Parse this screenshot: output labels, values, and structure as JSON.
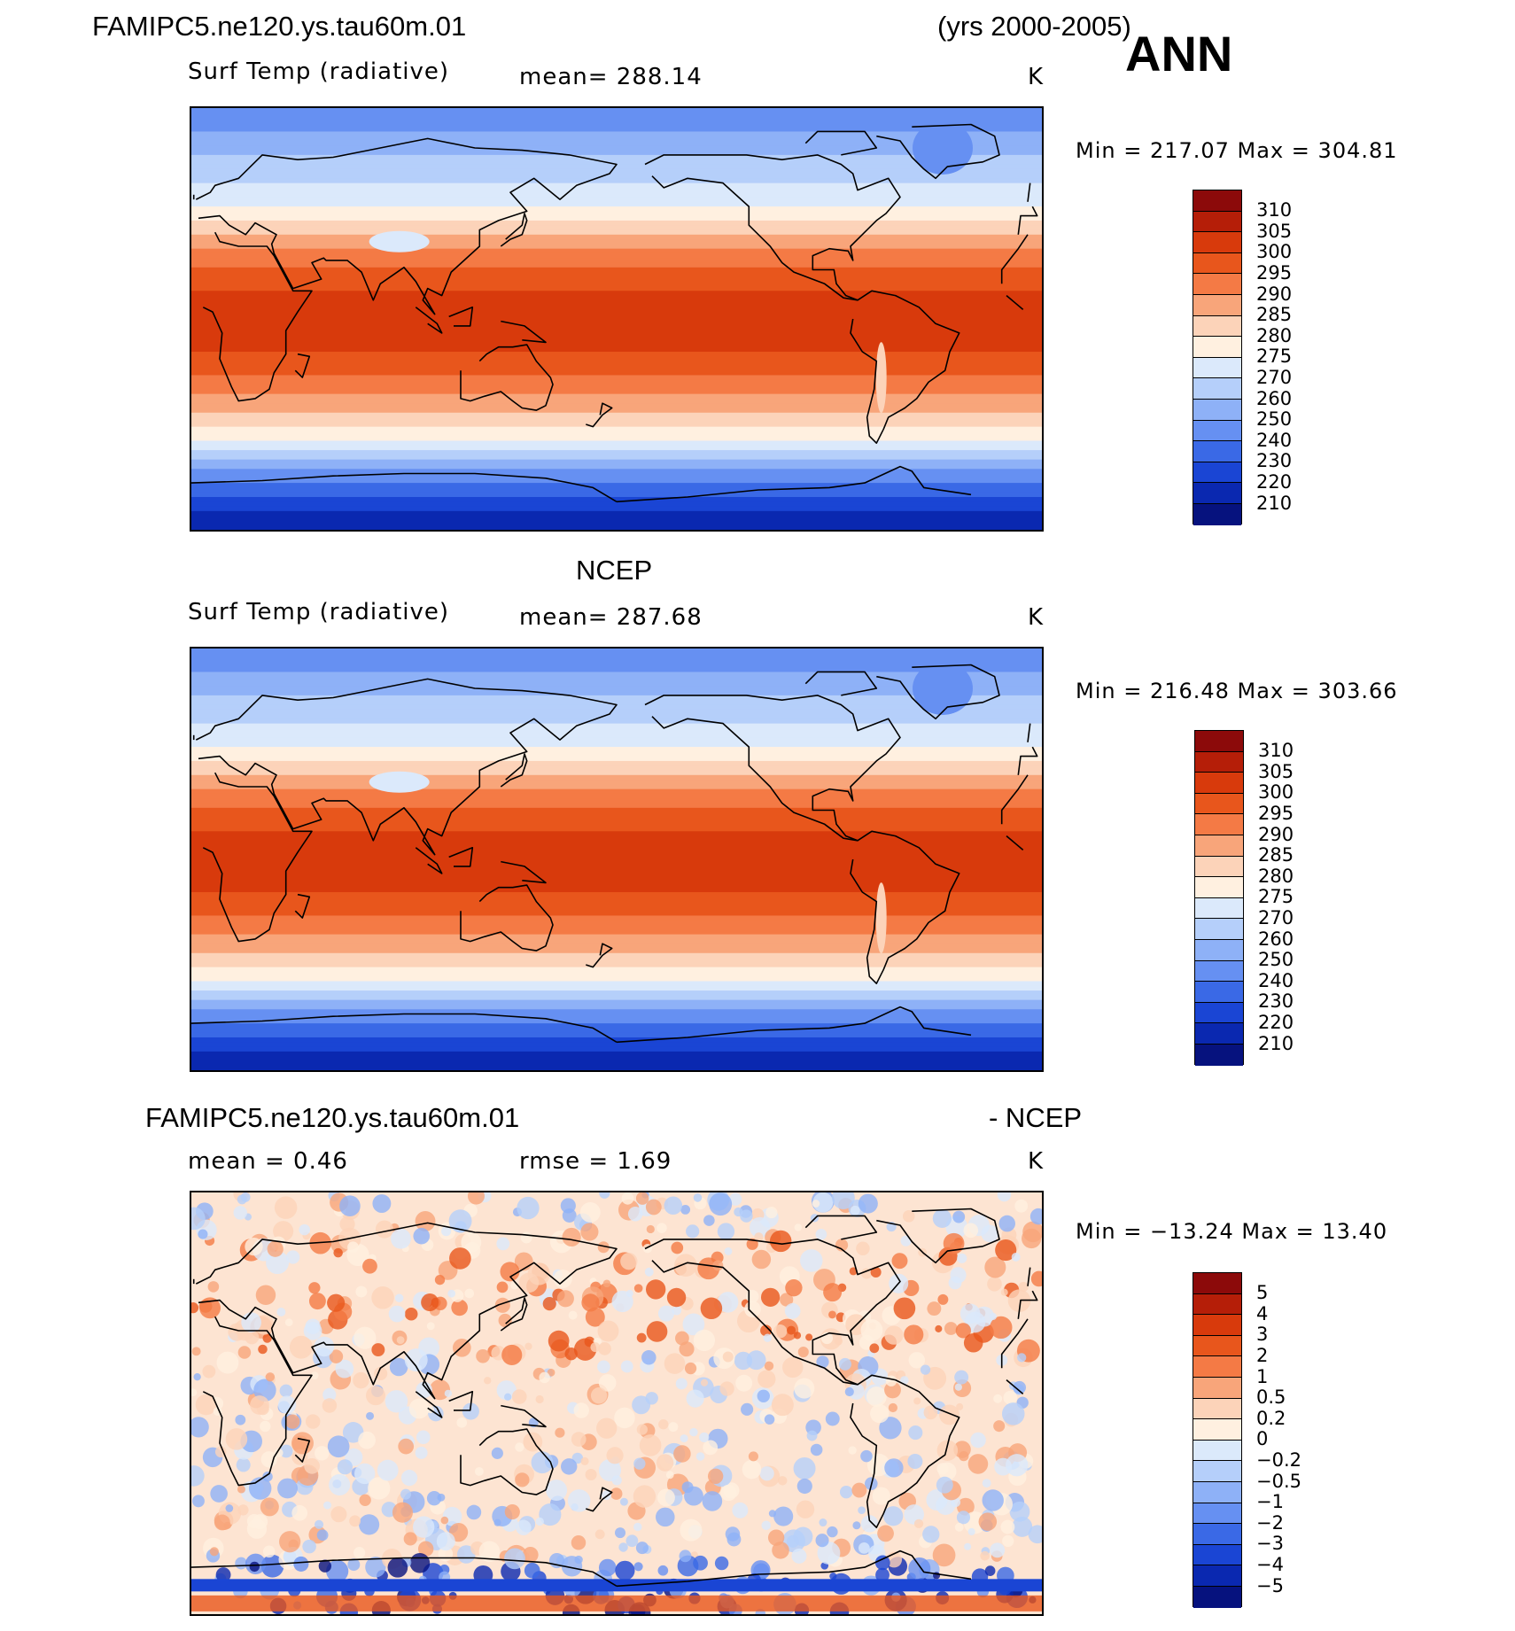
{
  "header": {
    "case_name": "FAMIPC5.ne120.ys.tau60m.01",
    "years": "(yrs 2000-2005)",
    "season": "ANN"
  },
  "panels": [
    {
      "id": "model",
      "title": "",
      "variable": "Surf Temp (radiative)",
      "stat_text": "mean=  288.14",
      "units": "K",
      "minmax": "Min = 217.07 Max = 304.81",
      "kind": "abs"
    },
    {
      "id": "obs",
      "title": "NCEP",
      "variable": "Surf Temp (radiative)",
      "stat_text": "mean=  287.68",
      "units": "K",
      "minmax": "Min = 216.48 Max = 303.66",
      "kind": "abs"
    },
    {
      "id": "diff",
      "title_left": "FAMIPC5.ne120.ys.tau60m.01",
      "title_right": "- NCEP",
      "stat_mean": "mean =    0.46",
      "stat_rmse": "rmse =    1.69",
      "units": "K",
      "minmax": "Min = −13.24 Max =   13.40",
      "kind": "diff"
    }
  ],
  "colorbar_abs": {
    "colors": [
      "#8c0a0a",
      "#b51e08",
      "#d83a0c",
      "#e8561c",
      "#f47a45",
      "#f8a57a",
      "#fcd3b9",
      "#fff0e0",
      "#dbe9fb",
      "#b5cffa",
      "#8eb1f7",
      "#6690f2",
      "#3a69e6",
      "#1a45d4",
      "#0a28b0",
      "#06127e"
    ],
    "labels": [
      "310",
      "305",
      "300",
      "295",
      "290",
      "285",
      "280",
      "275",
      "270",
      "260",
      "250",
      "240",
      "230",
      "220",
      "210"
    ]
  },
  "colorbar_diff": {
    "colors": [
      "#8c0a0a",
      "#b51e08",
      "#d83a0c",
      "#e8561c",
      "#f47a45",
      "#f8a57a",
      "#fcd3b9",
      "#fff0e0",
      "#dbe9fb",
      "#b5cffa",
      "#8eb1f7",
      "#6690f2",
      "#3a69e6",
      "#1a45d4",
      "#0a28b0",
      "#06127e"
    ],
    "labels": [
      "5",
      "4",
      "3",
      "2",
      "1",
      "0.5",
      "0.2",
      "0",
      "−0.2",
      "−0.5",
      "−1",
      "−2",
      "−3",
      "−4",
      "−5"
    ]
  }
}
